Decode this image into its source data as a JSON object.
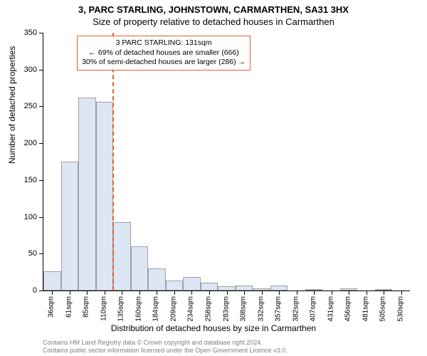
{
  "title_line1": "3, PARC STARLING, JOHNSTOWN, CARMARTHEN, SA31 3HX",
  "title_line2": "Size of property relative to detached houses in Carmarthen",
  "y_axis_title": "Number of detached properties",
  "x_axis_title": "Distribution of detached houses by size in Carmarthen",
  "footer_line1": "Contains HM Land Registry data © Crown copyright and database right 2024.",
  "footer_line2": "Contains public sector information licensed under the Open Government Licence v3.0.",
  "chart": {
    "type": "histogram",
    "ylim": [
      0,
      350
    ],
    "ytick_step": 50,
    "yticks": [
      0,
      50,
      100,
      150,
      200,
      250,
      300,
      350
    ],
    "x_categories": [
      "36sqm",
      "61sqm",
      "85sqm",
      "110sqm",
      "135sqm",
      "160sqm",
      "184sqm",
      "209sqm",
      "234sqm",
      "258sqm",
      "283sqm",
      "308sqm",
      "332sqm",
      "357sqm",
      "382sqm",
      "407sqm",
      "431sqm",
      "456sqm",
      "481sqm",
      "505sqm",
      "530sqm"
    ],
    "values": [
      26,
      175,
      262,
      256,
      93,
      60,
      30,
      14,
      18,
      11,
      6,
      7,
      3,
      7,
      0,
      2,
      0,
      3,
      0,
      2,
      0
    ],
    "bar_fill": "#dde6f4",
    "bar_border": "#a0a0a0",
    "background": "#ffffff",
    "title_fontsize": 13,
    "axis_label_fontsize": 12,
    "tick_fontsize": 11,
    "x_tick_fontsize": 10,
    "x_label_rotation": -90
  },
  "marker": {
    "position_sqm": 131,
    "x_index_after": 4,
    "line_color": "#e06030",
    "line_style": "dashed",
    "line_width": 2
  },
  "annotation": {
    "line1": "3 PARC STARLING: 131sqm",
    "line2": "← 69% of detached houses are smaller (666)",
    "line3": "30% of semi-detached houses are larger (286) →",
    "border_color": "#e06030",
    "fontsize": 10.5,
    "position": "top-inside"
  },
  "footer_color": "#808080",
  "footer_fontsize": 9
}
